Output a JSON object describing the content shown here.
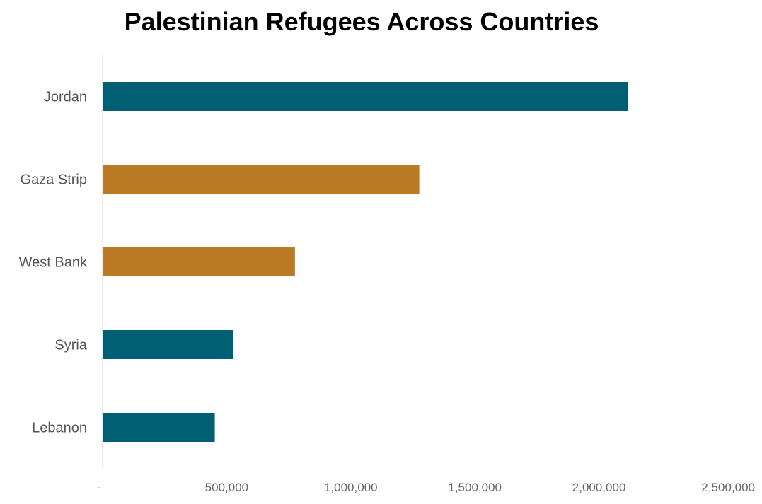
{
  "chart_data": {
    "type": "bar",
    "orientation": "horizontal",
    "title": "Palestinian Refugees Across Countries",
    "xlabel": "",
    "ylabel": "",
    "categories": [
      "Jordan",
      "Gaza Strip",
      "West Bank",
      "Syria",
      "Lebanon"
    ],
    "values": [
      2117000,
      1276000,
      775000,
      527000,
      452000
    ],
    "bar_colors": [
      "#005F73",
      "#BB7B25",
      "#BB7B25",
      "#005F73",
      "#005F73"
    ],
    "xlim": [
      0,
      2500000
    ],
    "x_ticks": [
      0,
      500000,
      1000000,
      1500000,
      2000000,
      2500000
    ],
    "x_tick_labels": [
      "-",
      "500,000",
      "1,000,000",
      "1,500,000",
      "2,000,000",
      "2,500,000"
    ],
    "grid": false,
    "legend": "none"
  }
}
